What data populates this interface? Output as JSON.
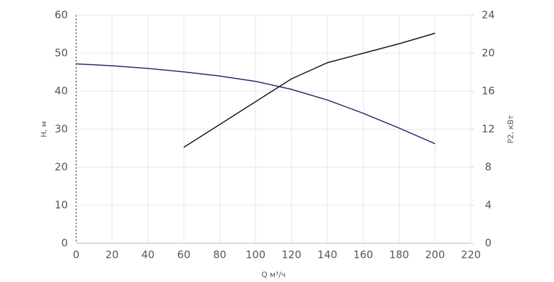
{
  "chart_data": {
    "type": "line",
    "x_label": "Q м³/ч",
    "y_label": "H, м",
    "y2_label": "P2, кВт",
    "xlim": [
      0,
      220
    ],
    "xticks": [
      0,
      20,
      40,
      60,
      80,
      100,
      120,
      140,
      160,
      180,
      200,
      220
    ],
    "ylim": [
      0,
      60
    ],
    "yticks": [
      0,
      10,
      20,
      30,
      40,
      50,
      60
    ],
    "y2lim": [
      0,
      24
    ],
    "y2ticks": [
      0,
      4,
      8,
      12,
      16,
      20,
      24
    ],
    "grid": true,
    "series": [
      {
        "color": "#1b2a6b",
        "x": [
          0,
          20,
          40,
          60,
          80,
          100,
          120,
          140,
          160,
          180,
          200
        ],
        "values": [
          47.2,
          46.7,
          46,
          45.1,
          44,
          42.6,
          40.5,
          37.7,
          34.2,
          30.3,
          26.2
        ]
      },
      {
        "color": "#111111",
        "axis": "y2",
        "x": [
          60,
          80,
          100,
          120,
          140,
          160,
          180,
          200
        ],
        "values": [
          10.1,
          12.5,
          14.9,
          17.3,
          19.0,
          20.0,
          21.0,
          22.1
        ]
      }
    ]
  }
}
